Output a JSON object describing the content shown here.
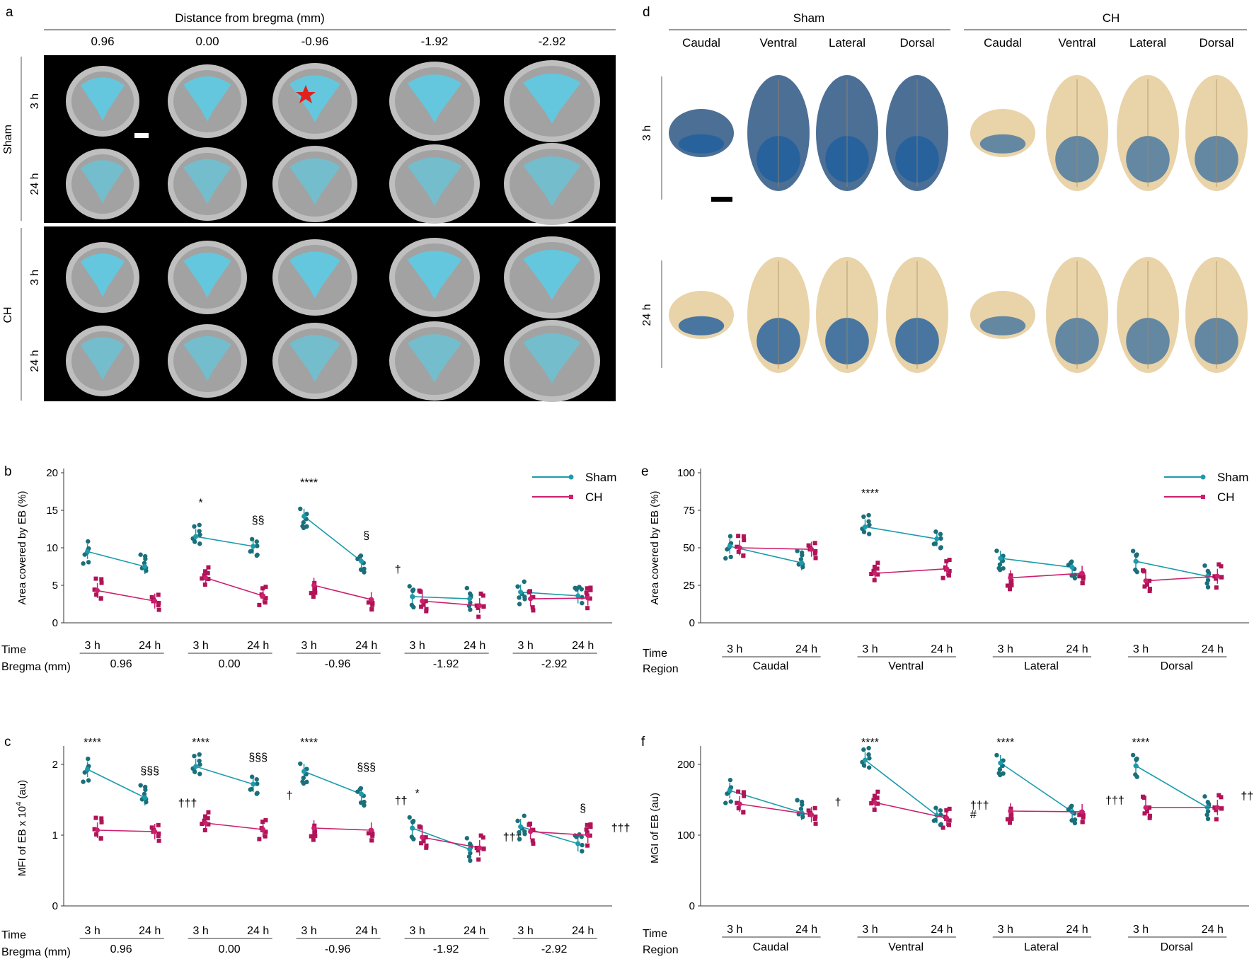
{
  "colors": {
    "sham": "#1b9bab",
    "ch": "#cc1f6e",
    "sham_dark": "#1a6f7a",
    "ch_dark": "#b01357",
    "tissue_cyan": "#4fd3f0",
    "panel_bg": "#000000",
    "brain_tan": "#e9d3a8",
    "dye_blue": "#1f5f9e"
  },
  "panel_a": {
    "letter": "a",
    "header": "Distance from bregma (mm)",
    "columns": [
      "0.96",
      "0.00",
      "-0.96",
      "-1.92",
      "-2.92"
    ],
    "group_labels": [
      "Sham",
      "CH"
    ],
    "time_labels": [
      "3 h",
      "24 h"
    ]
  },
  "panel_d": {
    "letter": "d",
    "groups": [
      "Sham",
      "CH"
    ],
    "views": [
      "Caudal",
      "Ventral",
      "Lateral",
      "Dorsal"
    ],
    "time_labels": [
      "3 h",
      "24 h"
    ]
  },
  "legend": {
    "sham": "Sham",
    "ch": "CH"
  },
  "row_labels": {
    "time": "Time",
    "bregma": "Bregma (mm)",
    "region": "Region"
  },
  "chart_data": [
    {
      "panel": "b",
      "type": "scatter",
      "ylabel": "Area covered by EB (%)",
      "ylim": [
        0,
        20
      ],
      "yticks": [
        "0",
        "5",
        "10",
        "15",
        "20"
      ],
      "groups": [
        "0.96",
        "0.00",
        "-0.96",
        "-1.92",
        "-2.92"
      ],
      "times": [
        "3 h",
        "24 h"
      ],
      "series": [
        {
          "name": "Sham",
          "values": [
            [
              9.5,
              7.5
            ],
            [
              11.5,
              10.2
            ],
            [
              14.2,
              8.2
            ],
            [
              3.5,
              3.2
            ],
            [
              4.1,
              3.6
            ]
          ]
        },
        {
          "name": "CH",
          "values": [
            [
              4.3,
              2.9
            ],
            [
              6.0,
              3.6
            ],
            [
              5.0,
              3.1
            ],
            [
              2.9,
              2.3
            ],
            [
              3.2,
              3.3
            ]
          ]
        }
      ],
      "annotations": [
        {
          "text": "*",
          "group": 1,
          "time": 0
        },
        {
          "text": "§§",
          "group": 1,
          "time": 1
        },
        {
          "text": "****",
          "group": 2,
          "time": 0
        },
        {
          "text": "§",
          "group": 2,
          "time": 1
        },
        {
          "text": "†",
          "group": 2,
          "time": 2
        }
      ]
    },
    {
      "panel": "c",
      "type": "scatter",
      "ylabel": "MFI of EB x 10",
      "ylabel_sup": "4",
      "ylabel_tail": " (au)",
      "ylim": [
        0,
        2.2
      ],
      "yticks": [
        "0",
        "1",
        "2"
      ],
      "groups": [
        "0.96",
        "0.00",
        "-0.96",
        "-1.92",
        "-2.92"
      ],
      "times": [
        "3 h",
        "24 h"
      ],
      "series": [
        {
          "name": "Sham",
          "values": [
            [
              1.93,
              1.53
            ],
            [
              1.97,
              1.72
            ],
            [
              1.9,
              1.58
            ],
            [
              1.1,
              0.8
            ],
            [
              1.12,
              0.88
            ]
          ]
        },
        {
          "name": "CH",
          "values": [
            [
              1.07,
              1.05
            ],
            [
              1.17,
              1.08
            ],
            [
              1.1,
              1.07
            ],
            [
              0.97,
              0.82
            ],
            [
              1.05,
              1.0
            ]
          ]
        }
      ],
      "annotations": [
        {
          "text": "****",
          "group": 0,
          "time": 0
        },
        {
          "text": "§§§",
          "group": 0,
          "time": 1
        },
        {
          "text": "†††",
          "group": 0,
          "time": 2
        },
        {
          "text": "****",
          "group": 1,
          "time": 0
        },
        {
          "text": "§§§",
          "group": 1,
          "time": 1
        },
        {
          "text": "†",
          "group": 1,
          "time": 2
        },
        {
          "text": "****",
          "group": 2,
          "time": 0
        },
        {
          "text": "§§§",
          "group": 2,
          "time": 1
        },
        {
          "text": "††",
          "group": 2,
          "time": 2
        },
        {
          "text": "*",
          "group": 3,
          "time": 0
        },
        {
          "text": "†††",
          "group": 3,
          "time": 2
        },
        {
          "text": "§",
          "group": 4,
          "time": 1
        },
        {
          "text": "†††",
          "group": 4,
          "time": 2
        }
      ]
    },
    {
      "panel": "e",
      "type": "scatter",
      "ylabel": "Area covered by EB (%)",
      "ylim": [
        0,
        100
      ],
      "yticks": [
        "0",
        "25",
        "50",
        "75",
        "100"
      ],
      "groups": [
        "Caudal",
        "Ventral",
        "Lateral",
        "Dorsal"
      ],
      "times": [
        "3 h",
        "24 h"
      ],
      "series": [
        {
          "name": "Sham",
          "values": [
            [
              51,
              40
            ],
            [
              64,
              56
            ],
            [
              43,
              37
            ],
            [
              41,
              31
            ]
          ]
        },
        {
          "name": "CH",
          "values": [
            [
              50,
              49
            ],
            [
              33,
              36
            ],
            [
              30,
              33
            ],
            [
              28,
              31
            ]
          ]
        }
      ],
      "annotations": [
        {
          "text": "****",
          "group": 1,
          "time": 0
        }
      ]
    },
    {
      "panel": "f",
      "type": "scatter",
      "ylabel": "MGI of EB (au)",
      "ylim": [
        0,
        220
      ],
      "yticks": [
        "0",
        "100",
        "200"
      ],
      "groups": [
        "Caudal",
        "Ventral",
        "Lateral",
        "Dorsal"
      ],
      "times": [
        "3 h",
        "24 h"
      ],
      "series": [
        {
          "name": "Sham",
          "values": [
            [
              163,
              132
            ],
            [
              206,
              128
            ],
            [
              202,
              133
            ],
            [
              198,
              139
            ]
          ]
        },
        {
          "name": "CH",
          "values": [
            [
              144,
              129
            ],
            [
              146,
              124
            ],
            [
              134,
              133
            ],
            [
              139,
              139
            ]
          ]
        }
      ],
      "annotations": [
        {
          "text": "†",
          "group": 0,
          "time": 2
        },
        {
          "text": "****",
          "group": 1,
          "time": 0
        },
        {
          "text": "†††",
          "group": 1,
          "time": 2
        },
        {
          "text": "#",
          "group": 1,
          "time": 3
        },
        {
          "text": "****",
          "group": 2,
          "time": 0
        },
        {
          "text": "†††",
          "group": 2,
          "time": 2
        },
        {
          "text": "****",
          "group": 3,
          "time": 0
        },
        {
          "text": "†††",
          "group": 3,
          "time": 2
        }
      ]
    }
  ]
}
